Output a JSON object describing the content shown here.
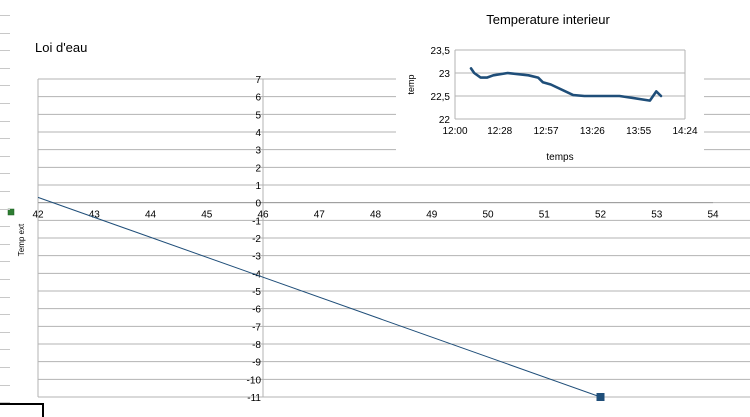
{
  "chart_data": [
    {
      "id": "main",
      "type": "scatter",
      "title": "Loi d'eau",
      "ylabel": "Temp ext",
      "xlim": [
        42,
        54
      ],
      "ylim": [
        -11,
        7
      ],
      "xticks": [
        42,
        43,
        44,
        45,
        46,
        47,
        48,
        49,
        50,
        51,
        52,
        53,
        54
      ],
      "yticks": [
        7,
        6,
        5,
        4,
        3,
        2,
        1,
        0,
        -1,
        -2,
        -3,
        -4,
        -5,
        -6,
        -7,
        -8,
        -9,
        -10,
        -11
      ],
      "grid": true,
      "series": [
        {
          "points": [
            {
              "x": 52,
              "y": -11
            }
          ],
          "color": "#1f4e79",
          "marker": "square"
        }
      ],
      "lines": [
        {
          "x": [
            42,
            52
          ],
          "y": [
            0.3,
            -11
          ],
          "color": "#1f4e79"
        }
      ]
    },
    {
      "id": "inset",
      "type": "line",
      "title": "Temperature interieur",
      "xlabel": "temps",
      "ylabel": "temp",
      "xlim": [
        "12:00",
        "14:24"
      ],
      "ylim": [
        22,
        23.5
      ],
      "xticks": [
        "12:00",
        "12:28",
        "12:57",
        "13:26",
        "13:55",
        "14:24"
      ],
      "yticks": [
        "22",
        "22,5",
        "23",
        "23,5"
      ],
      "grid": true,
      "series": [
        {
          "color": "#1f4e79",
          "x": [
            "12:10",
            "12:12",
            "12:16",
            "12:20",
            "12:24",
            "12:33",
            "12:46",
            "12:52",
            "12:55",
            "13:00",
            "13:14",
            "13:21",
            "13:30",
            "13:43",
            "14:02",
            "14:06",
            "14:09"
          ],
          "y": [
            23.1,
            23.0,
            22.9,
            22.9,
            22.95,
            23.0,
            22.95,
            22.9,
            22.8,
            22.75,
            22.52,
            22.5,
            22.5,
            22.5,
            22.4,
            22.6,
            22.5
          ]
        }
      ]
    }
  ]
}
